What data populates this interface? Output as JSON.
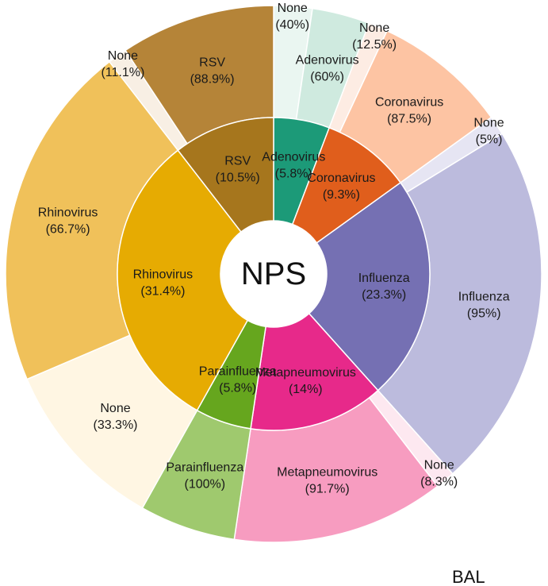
{
  "chart_data": {
    "type": "pie",
    "subtype": "sunburst-donut",
    "center_label": "NPS",
    "outer_label": "BAL",
    "inner": [
      {
        "name": "Adenovirus",
        "pct_label": "(5.8%)",
        "value": 5.8,
        "color": "#1c9a78"
      },
      {
        "name": "Coronavirus",
        "pct_label": "(9.3%)",
        "value": 9.3,
        "color": "#e05e1c"
      },
      {
        "name": "Influenza",
        "pct_label": "(23.3%)",
        "value": 23.3,
        "color": "#7570b3"
      },
      {
        "name": "Metapneumovirus",
        "pct_label": "(14%)",
        "value": 14.0,
        "color": "#e7298a"
      },
      {
        "name": "Parainfluenza",
        "pct_label": "(5.8%)",
        "value": 5.8,
        "color": "#66a61e"
      },
      {
        "name": "Rhinovirus",
        "pct_label": "(31.4%)",
        "value": 31.4,
        "color": "#e6ab02"
      },
      {
        "name": "RSV",
        "pct_label": "(10.5%)",
        "value": 10.5,
        "color": "#a6761d"
      }
    ],
    "outer": [
      {
        "parent": "Adenovirus",
        "segments": [
          {
            "name": "None",
            "pct_label": "(40%)",
            "value": 40,
            "color": "#eaf6f1"
          },
          {
            "name": "Adenovirus",
            "pct_label": "(60%)",
            "value": 60,
            "color": "#cfeadf"
          }
        ]
      },
      {
        "parent": "Coronavirus",
        "segments": [
          {
            "name": "None",
            "pct_label": "(12.5%)",
            "value": 12.5,
            "color": "#fdece3"
          },
          {
            "name": "Coronavirus",
            "pct_label": "(87.5%)",
            "value": 87.5,
            "color": "#fdc4a3"
          }
        ]
      },
      {
        "parent": "Influenza",
        "segments": [
          {
            "name": "None",
            "pct_label": "(5%)",
            "value": 5,
            "color": "#e6e5f3"
          },
          {
            "name": "Influenza",
            "pct_label": "(95%)",
            "value": 95,
            "color": "#bcbbdd"
          }
        ]
      },
      {
        "parent": "Metapneumovirus",
        "segments": [
          {
            "name": "None",
            "pct_label": "(8.3%)",
            "value": 8.3,
            "color": "#fde8f0"
          },
          {
            "name": "Metapneumovirus",
            "pct_label": "(91.7%)",
            "value": 91.7,
            "color": "#f79cc0"
          }
        ]
      },
      {
        "parent": "Parainfluenza",
        "segments": [
          {
            "name": "Parainfluenza",
            "pct_label": "(100%)",
            "value": 100,
            "color": "#9fc96e"
          }
        ]
      },
      {
        "parent": "Rhinovirus",
        "segments": [
          {
            "name": "None",
            "pct_label": "(33.3%)",
            "value": 33.3,
            "color": "#fff6e3"
          },
          {
            "name": "Rhinovirus",
            "pct_label": "(66.7%)",
            "value": 66.7,
            "color": "#f0c15a"
          }
        ]
      },
      {
        "parent": "RSV",
        "segments": [
          {
            "name": "None",
            "pct_label": "(11.1%)",
            "value": 11.1,
            "color": "#f8efe4"
          },
          {
            "name": "RSV",
            "pct_label": "(88.9%)",
            "value": 88.9,
            "color": "#b58438"
          }
        ]
      }
    ]
  }
}
